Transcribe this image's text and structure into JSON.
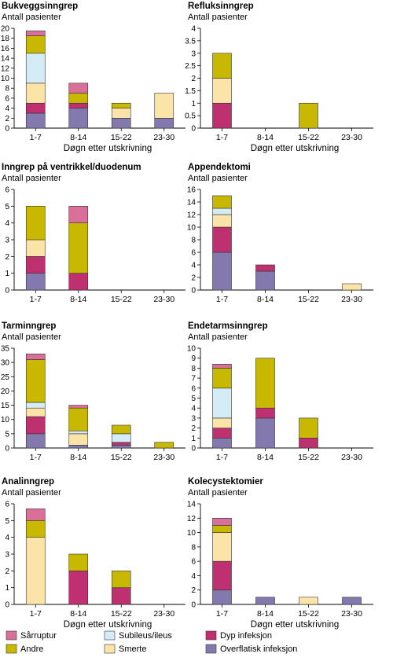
{
  "colors": {
    "Sårruptur": "#d9709a",
    "Andre": "#c8b800",
    "Subileus/ileus": "#d4ecf6",
    "Smerte": "#fce3a7",
    "Dyp infeksjon": "#bf3070",
    "Overflatisk infeksjon": "#8479ae"
  },
  "legend": {
    "items": [
      {
        "label": "Sårruptur",
        "color": "#d9709a"
      },
      {
        "label": "Andre",
        "color": "#c8b800"
      },
      {
        "label": "Subileus/ileus",
        "color": "#d4ecf6"
      },
      {
        "label": "Smerte",
        "color": "#fce3a7"
      },
      {
        "label": "Dyp infeksjon",
        "color": "#bf3070"
      },
      {
        "label": "Overflatisk infeksjon",
        "color": "#8479ae"
      }
    ]
  },
  "chart_data": [
    {
      "type": "bar",
      "stacked": true,
      "title": "Bukveggsinngrep",
      "ylabel": "Antall pasienter",
      "xlabel": "Døgn etter utskrivning",
      "categories": [
        "1-7",
        "8-14",
        "15-22",
        "23-30"
      ],
      "ylim": [
        0,
        20
      ],
      "yticks": [
        0,
        2,
        4,
        6,
        8,
        10,
        12,
        14,
        16,
        18,
        20
      ],
      "series": [
        {
          "name": "Overflatisk infeksjon",
          "values": [
            3,
            4,
            2,
            2
          ]
        },
        {
          "name": "Dyp infeksjon",
          "values": [
            2,
            1,
            0,
            0
          ]
        },
        {
          "name": "Smerte",
          "values": [
            4,
            0,
            2,
            5
          ]
        },
        {
          "name": "Subileus/ileus",
          "values": [
            6,
            0,
            0,
            0
          ]
        },
        {
          "name": "Andre",
          "values": [
            3.5,
            2,
            1,
            0
          ]
        },
        {
          "name": "Sårruptur",
          "values": [
            1,
            2,
            0,
            0
          ]
        }
      ]
    },
    {
      "type": "bar",
      "stacked": true,
      "title": "Refluksinngrep",
      "ylabel": "Antall pasienter",
      "xlabel": "Døgn etter utskrivning",
      "categories": [
        "1-7",
        "8-14",
        "15-22",
        "23-30"
      ],
      "ylim": [
        0,
        4
      ],
      "yticks": [
        0,
        0.5,
        1,
        1.5,
        2,
        2.5,
        3,
        3.5,
        4
      ],
      "series": [
        {
          "name": "Overflatisk infeksjon",
          "values": [
            0,
            0,
            0,
            0
          ]
        },
        {
          "name": "Dyp infeksjon",
          "values": [
            1,
            0,
            0,
            0
          ]
        },
        {
          "name": "Smerte",
          "values": [
            1,
            0,
            0,
            0
          ]
        },
        {
          "name": "Subileus/ileus",
          "values": [
            0,
            0,
            0,
            0
          ]
        },
        {
          "name": "Andre",
          "values": [
            1,
            0,
            1,
            0
          ]
        },
        {
          "name": "Sårruptur",
          "values": [
            0,
            0,
            0,
            0
          ]
        }
      ]
    },
    {
      "type": "bar",
      "stacked": true,
      "title": "Inngrep på ventrikkel/duodenum",
      "ylabel": "Antall pasienter",
      "xlabel": "",
      "categories": [
        "1-7",
        "8-14",
        "15-22",
        "23-30"
      ],
      "ylim": [
        0,
        6
      ],
      "yticks": [
        0,
        1,
        2,
        3,
        4,
        5,
        6
      ],
      "series": [
        {
          "name": "Overflatisk infeksjon",
          "values": [
            1,
            0,
            0,
            0
          ]
        },
        {
          "name": "Dyp infeksjon",
          "values": [
            1,
            1,
            0,
            0
          ]
        },
        {
          "name": "Smerte",
          "values": [
            1,
            0,
            0,
            0
          ]
        },
        {
          "name": "Subileus/ileus",
          "values": [
            0,
            0,
            0,
            0
          ]
        },
        {
          "name": "Andre",
          "values": [
            2,
            3,
            0,
            0
          ]
        },
        {
          "name": "Sårruptur",
          "values": [
            0,
            1,
            0,
            0
          ]
        }
      ]
    },
    {
      "type": "bar",
      "stacked": true,
      "title": "Appendektomi",
      "ylabel": "Antall pasienter",
      "xlabel": "",
      "categories": [
        "1-7",
        "8-14",
        "15-22",
        "23-30"
      ],
      "ylim": [
        0,
        16
      ],
      "yticks": [
        0,
        2,
        4,
        6,
        8,
        10,
        12,
        14,
        16
      ],
      "series": [
        {
          "name": "Overflatisk infeksjon",
          "values": [
            6,
            3,
            0,
            0
          ]
        },
        {
          "name": "Dyp infeksjon",
          "values": [
            4,
            1,
            0,
            0
          ]
        },
        {
          "name": "Smerte",
          "values": [
            2,
            0,
            0,
            1
          ]
        },
        {
          "name": "Subileus/ileus",
          "values": [
            1,
            0,
            0,
            0
          ]
        },
        {
          "name": "Andre",
          "values": [
            2,
            0,
            0,
            0
          ]
        },
        {
          "name": "Sårruptur",
          "values": [
            0,
            0,
            0,
            0
          ]
        }
      ]
    },
    {
      "type": "bar",
      "stacked": true,
      "title": "Tarminngrep",
      "ylabel": "Antall pasienter",
      "xlabel": "",
      "categories": [
        "1-7",
        "8-14",
        "15-22",
        "23-30"
      ],
      "ylim": [
        0,
        35
      ],
      "yticks": [
        0,
        5,
        10,
        15,
        20,
        25,
        30,
        35
      ],
      "series": [
        {
          "name": "Overflatisk infeksjon",
          "values": [
            5,
            1,
            1,
            0
          ]
        },
        {
          "name": "Dyp infeksjon",
          "values": [
            6,
            0,
            1,
            0
          ]
        },
        {
          "name": "Smerte",
          "values": [
            3,
            4,
            0,
            0
          ]
        },
        {
          "name": "Subileus/ileus",
          "values": [
            2,
            1,
            3,
            0
          ]
        },
        {
          "name": "Andre",
          "values": [
            15,
            8,
            3,
            2
          ]
        },
        {
          "name": "Sårruptur",
          "values": [
            2,
            1,
            0,
            0
          ]
        }
      ]
    },
    {
      "type": "bar",
      "stacked": true,
      "title": "Endetarmsinngrep",
      "ylabel": "Antall pasienter",
      "xlabel": "",
      "categories": [
        "1-7",
        "8-14",
        "15-22",
        "23-30"
      ],
      "ylim": [
        0,
        10
      ],
      "yticks": [
        0,
        1,
        2,
        3,
        4,
        5,
        6,
        7,
        8,
        9,
        10
      ],
      "series": [
        {
          "name": "Overflatisk infeksjon",
          "values": [
            1,
            3,
            0,
            0
          ]
        },
        {
          "name": "Dyp infeksjon",
          "values": [
            1,
            1,
            1,
            0
          ]
        },
        {
          "name": "Smerte",
          "values": [
            1,
            0,
            0,
            0
          ]
        },
        {
          "name": "Subileus/ileus",
          "values": [
            3,
            0,
            0,
            0
          ]
        },
        {
          "name": "Andre",
          "values": [
            2,
            5,
            2,
            0
          ]
        },
        {
          "name": "Sårruptur",
          "values": [
            0.4,
            0,
            0,
            0
          ]
        }
      ]
    },
    {
      "type": "bar",
      "stacked": true,
      "title": "Analinngrep",
      "ylabel": "Antall pasienter",
      "xlabel": "Døgn etter utskrivning",
      "categories": [
        "1-7",
        "8-14",
        "15-22",
        "23-30"
      ],
      "ylim": [
        0,
        6
      ],
      "yticks": [
        0,
        1,
        2,
        3,
        4,
        5,
        6
      ],
      "series": [
        {
          "name": "Overflatisk infeksjon",
          "values": [
            0,
            0,
            0,
            0
          ]
        },
        {
          "name": "Dyp infeksjon",
          "values": [
            0,
            2,
            1,
            0
          ]
        },
        {
          "name": "Smerte",
          "values": [
            4,
            0,
            0,
            0
          ]
        },
        {
          "name": "Subileus/ileus",
          "values": [
            0,
            0,
            0,
            0
          ]
        },
        {
          "name": "Andre",
          "values": [
            1,
            1,
            1,
            0
          ]
        },
        {
          "name": "Sårruptur",
          "values": [
            0.7,
            0,
            0,
            0
          ]
        }
      ]
    },
    {
      "type": "bar",
      "stacked": true,
      "title": "Kolecystektomier",
      "ylabel": "Antall pasienter",
      "xlabel": "Døgn etter utskrivning",
      "categories": [
        "1-7",
        "8-14",
        "15-22",
        "23-30"
      ],
      "ylim": [
        0,
        14
      ],
      "yticks": [
        0,
        2,
        4,
        6,
        8,
        10,
        12,
        14
      ],
      "series": [
        {
          "name": "Overflatisk infeksjon",
          "values": [
            2,
            1,
            0,
            1
          ]
        },
        {
          "name": "Dyp infeksjon",
          "values": [
            4,
            0,
            0,
            0
          ]
        },
        {
          "name": "Smerte",
          "values": [
            4,
            0,
            1,
            0
          ]
        },
        {
          "name": "Subileus/ileus",
          "values": [
            0,
            0,
            0,
            0
          ]
        },
        {
          "name": "Andre",
          "values": [
            1,
            0,
            0,
            0
          ]
        },
        {
          "name": "Sårruptur",
          "values": [
            1,
            0,
            0,
            0
          ]
        }
      ]
    }
  ]
}
